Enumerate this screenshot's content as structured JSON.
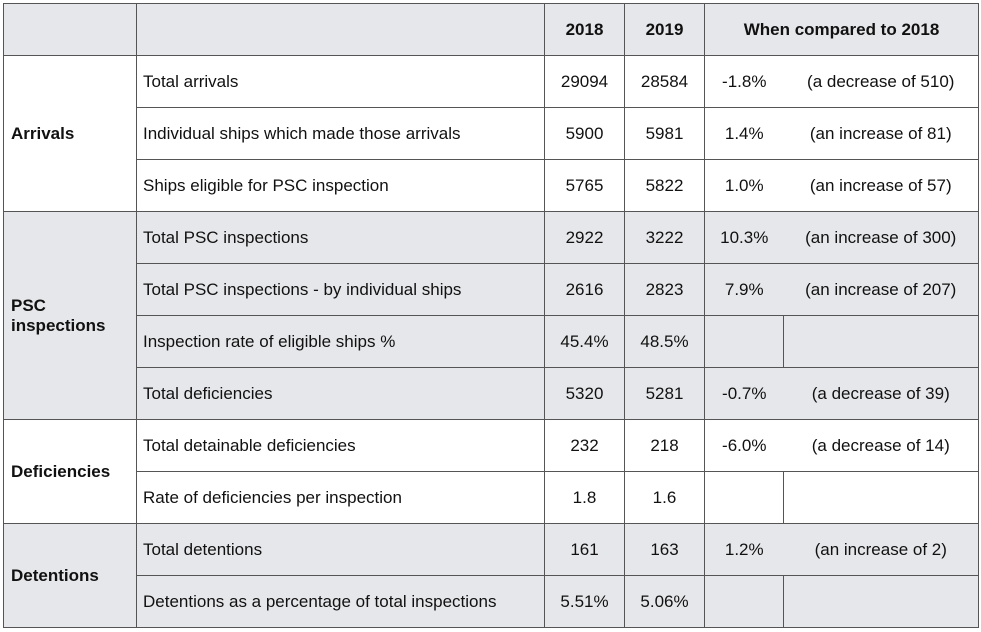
{
  "header": {
    "col_2018": "2018",
    "col_2019": "2019",
    "col_compare": "When compared to 2018"
  },
  "groups": {
    "arrivals": "Arrivals",
    "psc": "PSC inspections",
    "deficiencies": "Deficiencies",
    "detentions": "Detentions"
  },
  "rows": [
    {
      "label": "Total arrivals",
      "y2018": "29094",
      "y2019": "28584",
      "pct": "-1.8%",
      "note": "(a decrease of 510)"
    },
    {
      "label": "Individual ships which made those arrivals",
      "y2018": "5900",
      "y2019": "5981",
      "pct": "1.4%",
      "note": "(an increase of 81)"
    },
    {
      "label": "Ships eligible for PSC inspection",
      "y2018": "5765",
      "y2019": "5822",
      "pct": "1.0%",
      "note": "(an increase of 57)"
    },
    {
      "label": "Total PSC inspections",
      "y2018": "2922",
      "y2019": "3222",
      "pct": "10.3%",
      "note": "(an increase of 300)"
    },
    {
      "label": "Total PSC inspections - by individual ships",
      "y2018": "2616",
      "y2019": "2823",
      "pct": "7.9%",
      "note": "(an increase of 207)"
    },
    {
      "label": "Inspection rate of eligible ships %",
      "y2018": "45.4%",
      "y2019": "48.5%",
      "pct": "",
      "note": ""
    },
    {
      "label": "Total deficiencies",
      "y2018": "5320",
      "y2019": "5281",
      "pct": "-0.7%",
      "note": "(a decrease of 39)"
    },
    {
      "label": "Total detainable deficiencies",
      "y2018": "232",
      "y2019": "218",
      "pct": "-6.0%",
      "note": "(a decrease of 14)"
    },
    {
      "label": "Rate of deficiencies per inspection",
      "y2018": "1.8",
      "y2019": "1.6",
      "pct": "",
      "note": ""
    },
    {
      "label": "Total detentions",
      "y2018": "161",
      "y2019": "163",
      "pct": "1.2%",
      "note": "(an increase of 2)"
    },
    {
      "label": "Detentions as a percentage of total inspections",
      "y2018": "5.51%",
      "y2019": "5.06%",
      "pct": "",
      "note": ""
    }
  ]
}
